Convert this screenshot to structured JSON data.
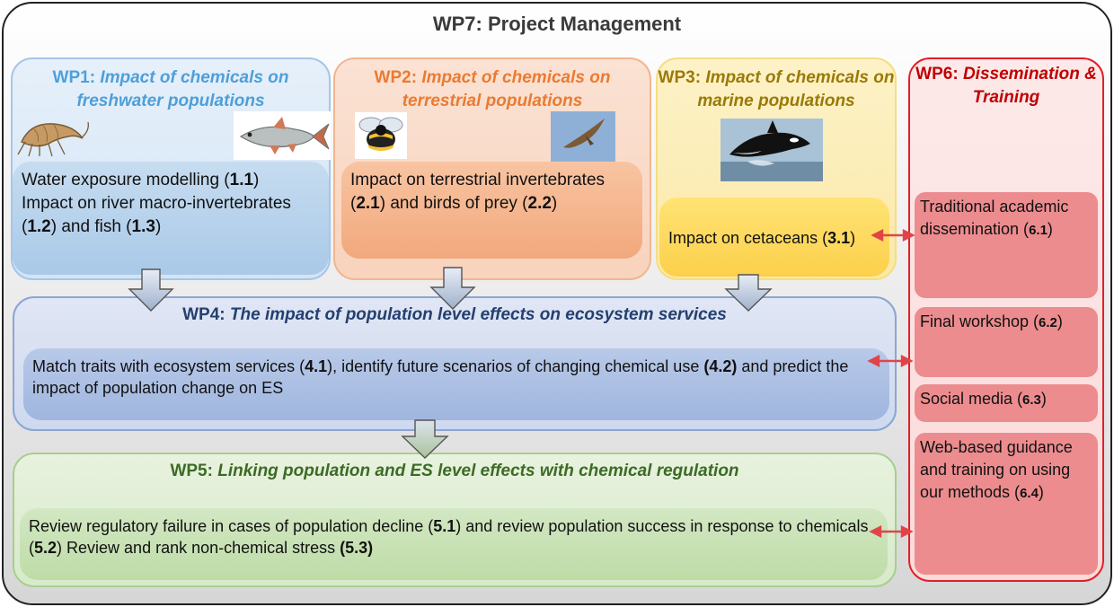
{
  "title": "WP7:  Project Management",
  "wp1": {
    "label": "WP1: ",
    "title": "Impact of chemicals on freshwater populations",
    "body": [
      "Water exposure modelling  (",
      "1.1",
      ")",
      "Impact on river macro-invertebrates (",
      "1.2",
      ") and fish (",
      "1.3",
      ")"
    ]
  },
  "wp2": {
    "label": "WP2: ",
    "title": "Impact of chemicals on terrestrial populations",
    "body": [
      "Impact on terrestrial invertebrates (",
      "2.1",
      ") and birds of prey (",
      "2.2",
      ")"
    ]
  },
  "wp3": {
    "label": "WP3: ",
    "title": "Impact of chemicals on marine populations",
    "body": [
      "Impact on cetaceans (",
      "3.1",
      ")"
    ]
  },
  "wp4": {
    "label": "WP4: ",
    "title": "The impact of population level effects on ecosystem services",
    "body": [
      "Match traits with ecosystem services (",
      "4.1",
      "), identify future scenarios of changing chemical use ",
      "(4.2)",
      " and predict the impact of population change on ES"
    ]
  },
  "wp5": {
    "label": "WP5: ",
    "title": "Linking population and ES level effects with chemical regulation",
    "body": [
      "Review regulatory failure in cases of population decline (",
      "5.1",
      ") and review population success in response to chemicals (",
      "5.2",
      ") Review and rank non-chemical stress ",
      "(5.3)"
    ]
  },
  "wp6": {
    "label": "WP6: ",
    "title": "Dissemination & Training",
    "items": [
      {
        "text": "Traditional academic dissemination (",
        "num": "6.1",
        "end": ")"
      },
      {
        "text": "Final workshop (",
        "num": "6.2",
        "end": ")"
      },
      {
        "text": "Social media (",
        "num": "6.3",
        "end": ")"
      },
      {
        "text": "Web-based guidance and training on using our methods (",
        "num": "6.4",
        "end": ")"
      }
    ]
  },
  "colors": {
    "freshwater": "#4e9fd9",
    "terrestrial": "#ea7b32",
    "marine": "#9a7a06",
    "services": "#24406f",
    "regulation": "#3c6b25",
    "dissemination": "#c00000",
    "link_arrow": "#e0444a"
  },
  "icons": [
    "shrimp-icon",
    "fish-icon",
    "bee-icon",
    "bird-of-prey-icon",
    "orca-icon",
    "down-arrow-icon",
    "double-arrow-icon"
  ]
}
